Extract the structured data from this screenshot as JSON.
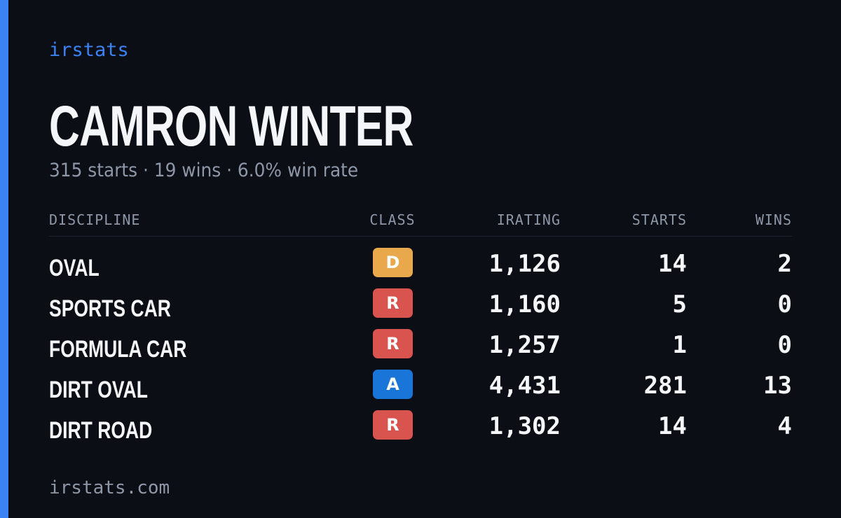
{
  "brand": "irstats",
  "driver": {
    "name": "CAMRON WINTER",
    "summary": "315 starts · 19 wins · 6.0% win rate"
  },
  "table": {
    "headers": [
      "DISCIPLINE",
      "CLASS",
      "IRATING",
      "STARTS",
      "WINS"
    ],
    "rows": [
      {
        "discipline": "OVAL",
        "class": "D",
        "class_color": "#e9a84c",
        "irating": "1,126",
        "starts": 14,
        "wins": 2
      },
      {
        "discipline": "SPORTS CAR",
        "class": "R",
        "class_color": "#d9534f",
        "irating": "1,160",
        "starts": 5,
        "wins": 0
      },
      {
        "discipline": "FORMULA CAR",
        "class": "R",
        "class_color": "#d9534f",
        "irating": "1,257",
        "starts": 1,
        "wins": 0
      },
      {
        "discipline": "DIRT OVAL",
        "class": "A",
        "class_color": "#1976d8",
        "irating": "4,431",
        "starts": 281,
        "wins": 13
      },
      {
        "discipline": "DIRT ROAD",
        "class": "R",
        "class_color": "#d9534f",
        "irating": "1,302",
        "starts": 14,
        "wins": 4
      }
    ]
  },
  "footer": "irstats.com"
}
